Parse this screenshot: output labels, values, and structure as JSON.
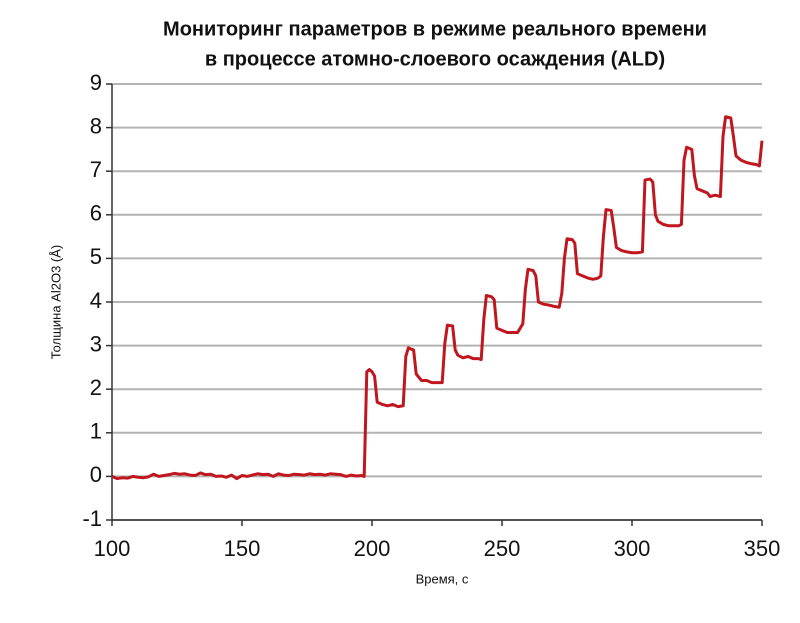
{
  "chart_data": {
    "type": "line",
    "title": [
      "Мониторинг параметров в режиме реального времени",
      "в процессе атомно-слоевого осаждения (ALD)"
    ],
    "xlabel": "Время, с",
    "ylabel": "Толщина Al2O3 (Å)",
    "xlim": [
      100,
      350
    ],
    "xticks": [
      100,
      150,
      200,
      250,
      300,
      350
    ],
    "ylim": [
      -1,
      9
    ],
    "yticks": [
      -1,
      0,
      1,
      2,
      3,
      4,
      5,
      6,
      7,
      8,
      9
    ],
    "grid": true,
    "series": [
      {
        "name": "Толщина",
        "color": "#c0161e",
        "x": [
          100,
          102,
          104,
          106,
          108,
          110,
          112,
          114,
          116,
          118,
          120,
          122,
          124,
          126,
          128,
          130,
          132,
          134,
          136,
          138,
          140,
          142,
          144,
          146,
          148,
          150,
          152,
          154,
          156,
          158,
          160,
          162,
          164,
          166,
          168,
          170,
          172,
          174,
          176,
          178,
          180,
          182,
          184,
          186,
          188,
          190,
          192,
          194,
          196,
          197,
          198,
          199,
          200,
          201,
          202,
          204,
          206,
          208,
          210,
          212,
          213,
          214,
          215,
          216,
          217,
          219,
          221,
          223,
          225,
          227,
          228,
          229,
          231,
          232,
          233,
          235,
          237,
          239,
          241,
          242,
          243,
          244,
          246,
          247,
          248,
          250,
          252,
          254,
          256,
          258,
          259,
          260,
          262,
          263,
          264,
          266,
          268,
          270,
          272,
          273,
          274,
          275,
          277,
          278,
          279,
          281,
          283,
          285,
          287,
          288,
          289,
          290,
          292,
          293,
          294,
          296,
          298,
          300,
          302,
          304,
          305,
          307,
          308,
          309,
          310,
          312,
          314,
          316,
          318,
          319,
          320,
          321,
          323,
          324,
          325,
          327,
          329,
          330,
          332,
          334,
          335,
          336,
          338,
          339,
          340,
          342,
          344,
          346,
          348,
          349,
          350
        ],
        "values": [
          0.0,
          -0.05,
          -0.03,
          -0.04,
          0.0,
          -0.02,
          -0.03,
          -0.01,
          0.05,
          0.0,
          0.02,
          0.04,
          0.07,
          0.05,
          0.06,
          0.03,
          0.02,
          0.08,
          0.04,
          0.05,
          0.0,
          0.01,
          -0.02,
          0.03,
          -0.05,
          0.02,
          0.0,
          0.03,
          0.06,
          0.04,
          0.05,
          0.0,
          0.06,
          0.03,
          0.02,
          0.05,
          0.04,
          0.03,
          0.06,
          0.04,
          0.05,
          0.03,
          0.06,
          0.05,
          0.04,
          0.0,
          0.03,
          0.01,
          0.02,
          0.0,
          2.4,
          2.45,
          2.4,
          2.3,
          1.7,
          1.65,
          1.62,
          1.65,
          1.6,
          1.62,
          2.75,
          2.95,
          2.92,
          2.9,
          2.35,
          2.2,
          2.2,
          2.15,
          2.15,
          2.15,
          3.05,
          3.47,
          3.45,
          2.9,
          2.78,
          2.72,
          2.75,
          2.7,
          2.7,
          2.68,
          3.6,
          4.15,
          4.12,
          4.05,
          3.4,
          3.35,
          3.3,
          3.3,
          3.3,
          3.5,
          4.3,
          4.75,
          4.72,
          4.6,
          4.0,
          3.95,
          3.93,
          3.9,
          3.88,
          4.2,
          5.0,
          5.45,
          5.43,
          5.35,
          4.65,
          4.6,
          4.55,
          4.52,
          4.55,
          4.6,
          5.5,
          6.12,
          6.1,
          5.7,
          5.25,
          5.18,
          5.15,
          5.13,
          5.13,
          5.15,
          6.8,
          6.82,
          6.75,
          6.0,
          5.85,
          5.78,
          5.75,
          5.75,
          5.75,
          5.78,
          7.25,
          7.55,
          7.5,
          6.9,
          6.6,
          6.55,
          6.5,
          6.42,
          6.45,
          6.42,
          7.8,
          8.25,
          8.22,
          7.8,
          7.35,
          7.25,
          7.2,
          7.17,
          7.15,
          7.12,
          7.7
        ]
      }
    ]
  }
}
